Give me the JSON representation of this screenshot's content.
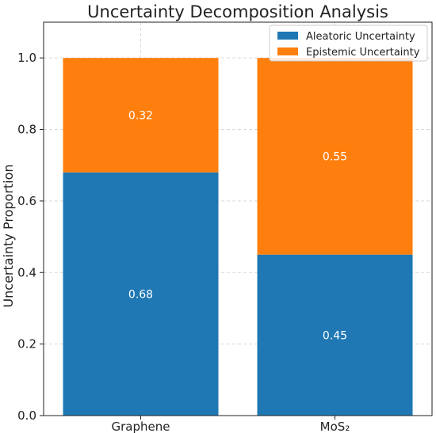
{
  "chart_data": {
    "type": "bar",
    "stacked": true,
    "title": "Uncertainty Decomposition Analysis",
    "xlabel": "",
    "ylabel": "Uncertainty Proportion",
    "categories": [
      "Graphene",
      "MoS₂"
    ],
    "series": [
      {
        "name": "Aleatoric Uncertainty",
        "values": [
          0.68,
          0.45
        ],
        "labels": [
          "0.68",
          "0.45"
        ],
        "color": "#1f77b4"
      },
      {
        "name": "Epistemic Uncertainty",
        "values": [
          0.32,
          0.55
        ],
        "labels": [
          "0.32",
          "0.55"
        ],
        "color": "#ff7f0e"
      }
    ],
    "ylim": [
      0,
      1.1
    ],
    "yticks": [
      0.0,
      0.2,
      0.4,
      0.6,
      0.8,
      1.0
    ],
    "ytick_labels": [
      "0.0",
      "0.2",
      "0.4",
      "0.6",
      "0.8",
      "1.0"
    ],
    "grid": true,
    "legend_position": "top-right"
  }
}
